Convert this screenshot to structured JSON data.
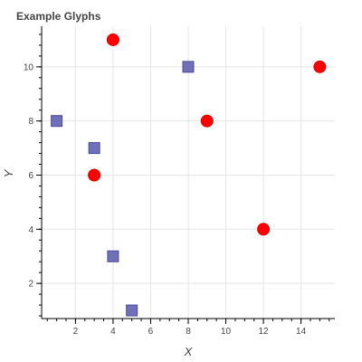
{
  "chart_data": {
    "type": "scatter",
    "title": "Example Glyphs",
    "xlabel": "X",
    "ylabel": "Y",
    "xlim": [
      0.2,
      15.8
    ],
    "ylim": [
      0.7,
      11.5
    ],
    "x_ticks": [
      2,
      4,
      6,
      8,
      10,
      12,
      14
    ],
    "y_ticks": [
      2,
      4,
      6,
      8,
      10
    ],
    "x_minor_step": 0.5,
    "y_minor_step": 0.4,
    "grid": true,
    "series": [
      {
        "marker": "square",
        "color": "#6060B0",
        "x": [
          1,
          3,
          4,
          5,
          8
        ],
        "y": [
          8,
          7,
          3,
          1,
          10
        ]
      },
      {
        "marker": "circle",
        "color": "#FF0000",
        "x": [
          3,
          4,
          9,
          12,
          15
        ],
        "y": [
          6,
          11,
          8,
          4,
          10
        ]
      }
    ]
  }
}
